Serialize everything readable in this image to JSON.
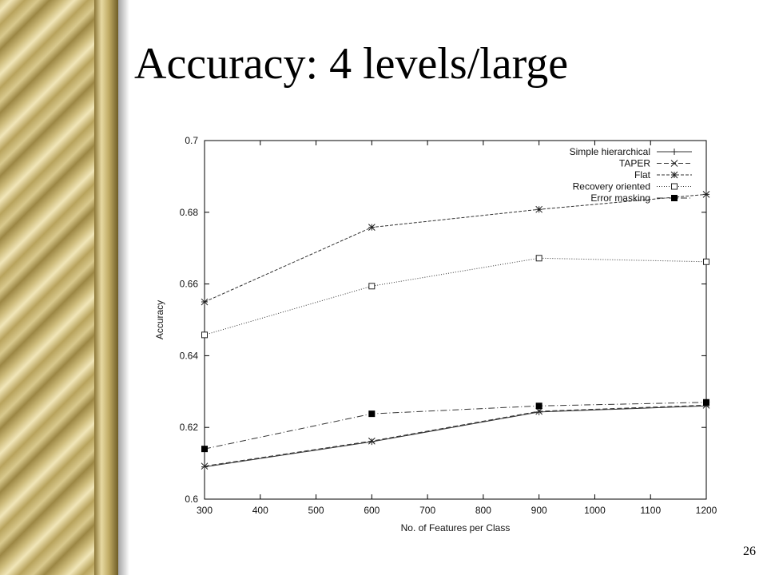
{
  "slide": {
    "title": "Accuracy: 4 levels/large",
    "page_number": "26"
  },
  "chart_data": {
    "type": "line",
    "title": "",
    "xlabel": "No. of Features per Class",
    "ylabel": "Accuracy",
    "xlim": [
      300,
      1200
    ],
    "ylim": [
      0.6,
      0.7
    ],
    "x_ticks": [
      300,
      400,
      500,
      600,
      700,
      800,
      900,
      1000,
      1100,
      1200
    ],
    "y_ticks": [
      0.6,
      0.62,
      0.64,
      0.66,
      0.68,
      0.7
    ],
    "x_tick_labels": [
      "300",
      "400",
      "500",
      "600",
      "700",
      "800",
      "900",
      "1000",
      "1100",
      "1200"
    ],
    "y_tick_labels": [
      "0.6",
      "0.62",
      "0.64",
      "0.66",
      "0.68",
      "0.7"
    ],
    "grid": false,
    "legend_position": "top-right",
    "x": [
      300,
      600,
      900,
      1200
    ],
    "series": [
      {
        "name": "Simple hierarchical",
        "values": [
          0.609,
          0.616,
          0.6243,
          0.626
        ],
        "marker": "plus",
        "dash": "none"
      },
      {
        "name": "TAPER",
        "values": [
          0.6092,
          0.6162,
          0.6245,
          0.6262
        ],
        "marker": "x",
        "dash": "6,3"
      },
      {
        "name": "Flat",
        "values": [
          0.655,
          0.6758,
          0.6808,
          0.685
        ],
        "marker": "star",
        "dash": "4,2"
      },
      {
        "name": "Recovery oriented",
        "values": [
          0.6458,
          0.6594,
          0.6672,
          0.6662
        ],
        "marker": "square-open",
        "dash": "1,2"
      },
      {
        "name": "Error masking",
        "values": [
          0.614,
          0.6238,
          0.626,
          0.627
        ],
        "marker": "square-filled",
        "dash": "8,3,1,3"
      }
    ]
  }
}
